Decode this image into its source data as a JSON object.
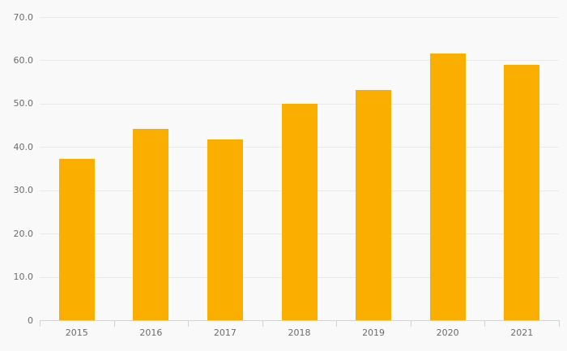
{
  "chart_data": {
    "type": "bar",
    "title": "",
    "xlabel": "",
    "ylabel": "",
    "categories": [
      "2015",
      "2016",
      "2017",
      "2018",
      "2019",
      "2020",
      "2021"
    ],
    "values": [
      37.3,
      44.2,
      41.8,
      49.9,
      53.1,
      61.5,
      59.0
    ],
    "ylim": [
      0,
      70
    ],
    "ytick_step": 10,
    "ytick_labels": [
      "0",
      "10.0",
      "20.0",
      "30.0",
      "40.0",
      "50.0",
      "60.0",
      "70.0"
    ],
    "grid": true,
    "legend_position": "none",
    "colors": {
      "bar": "#f9ae00",
      "background": "#f9f9f9",
      "gridline": "#e9e9e9",
      "axis": "#c9d3e6",
      "label_text": "#6b6b6b"
    }
  }
}
